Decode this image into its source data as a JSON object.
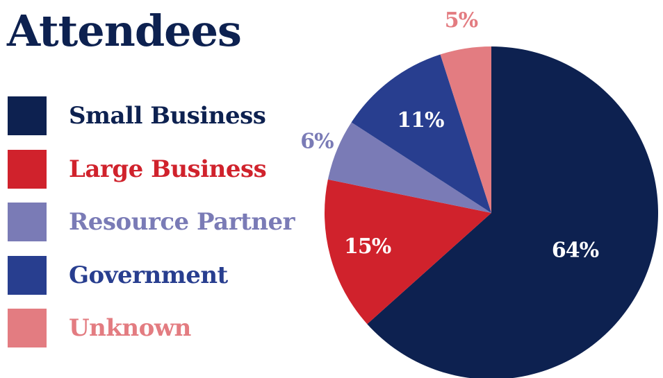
{
  "chart_data": {
    "type": "pie",
    "title": "Attendees",
    "categories": [
      "Small Business",
      "Large Business",
      "Resource Partner",
      "Government",
      "Unknown"
    ],
    "values": [
      64,
      15,
      6,
      11,
      5
    ],
    "labels": [
      "64%",
      "15%",
      "6%",
      "11%",
      "5%"
    ],
    "colors": [
      "#0d2150",
      "#d0222c",
      "#7a7bb6",
      "#283e8f",
      "#e37c81"
    ],
    "legend": "left"
  }
}
